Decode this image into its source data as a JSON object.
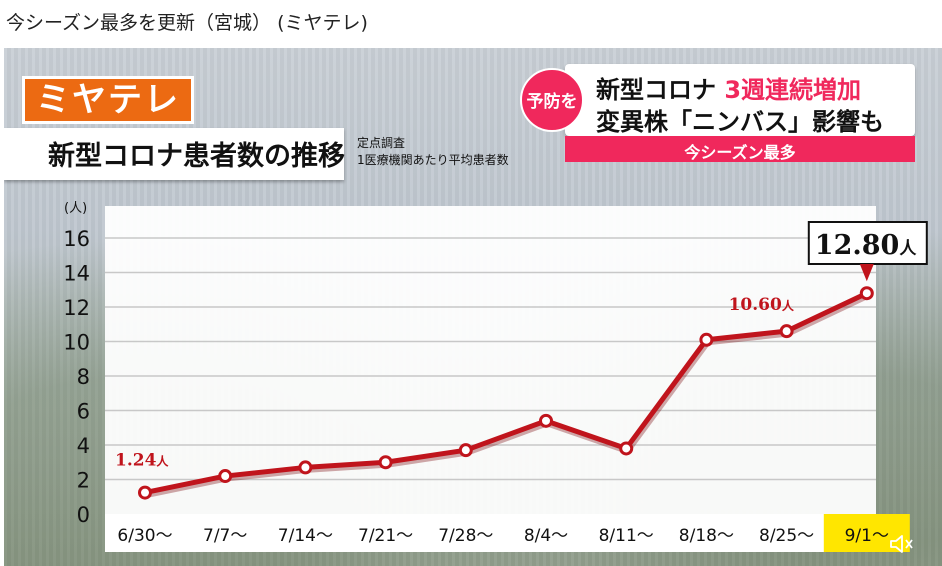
{
  "page": {
    "title": "今シーズン最多を更新（宮城） (ミヤテレ)"
  },
  "logo": {
    "text": "ミヤテレ"
  },
  "headline": {
    "title": "新型コロナ患者数の推移",
    "note_line1": "定点調査",
    "note_line2": "1医療機関あたり平均患者数"
  },
  "news": {
    "badge": "予防を",
    "line1_prefix": "新型コロナ",
    "line1_accent": "3週連続増加",
    "line2": "変異株「ニンバス」影響も",
    "footer": "今シーズン最多"
  },
  "colors": {
    "line": "#c0141c",
    "accent_pink": "#f0285c",
    "logo_orange": "#ec6a12",
    "highlight": "#ffe600"
  },
  "chart_data": {
    "type": "line",
    "unit_label": "(人)",
    "categories": [
      "6/30～",
      "7/7～",
      "7/14～",
      "7/21～",
      "7/28～",
      "8/4～",
      "8/11～",
      "8/18～",
      "8/25～",
      "9/1～"
    ],
    "series": [
      {
        "values": [
          1.24,
          2.2,
          2.7,
          3.0,
          3.7,
          5.4,
          3.8,
          10.1,
          10.6,
          12.8
        ]
      }
    ],
    "yticks": [
      0,
      2,
      4,
      6,
      8,
      10,
      12,
      14,
      16
    ],
    "ylim": [
      0,
      16
    ],
    "grid": true,
    "highlight_category": "9/1～",
    "labels": [
      {
        "index": 0,
        "number": "1.24",
        "unit": "人"
      },
      {
        "index": 8,
        "number": "10.60",
        "unit": "人"
      }
    ],
    "callout": {
      "index": 9,
      "number": "12.80",
      "unit": "人"
    }
  },
  "icons": {
    "sound": "speaker-muted-icon"
  }
}
